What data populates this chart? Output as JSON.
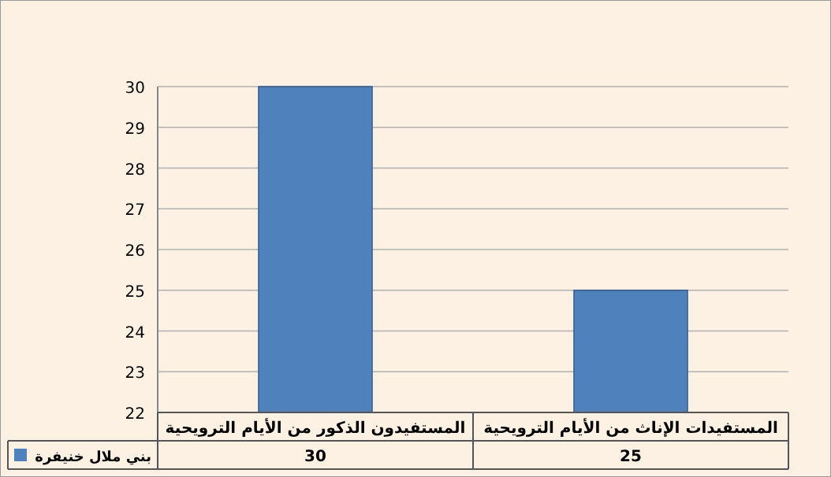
{
  "chart_data": {
    "type": "bar",
    "categories": [
      "المستفيدون الذكور من الأيام الترويحية",
      "المستفيدات الإناث من الأيام الترويحية"
    ],
    "series": [
      {
        "name": "بني ملال خنيفرة",
        "color": "#4f81bd",
        "values": [
          30,
          25
        ]
      }
    ],
    "ylim": [
      22,
      30
    ],
    "yticks": [
      22,
      23,
      24,
      25,
      26,
      27,
      28,
      29,
      30
    ],
    "grid": "y",
    "legend": "bottom left",
    "data_labels": true
  }
}
